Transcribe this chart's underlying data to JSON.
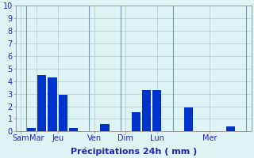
{
  "x_positions": [
    1,
    2,
    3,
    4,
    5,
    8,
    11,
    12,
    13,
    16,
    17,
    20
  ],
  "bar_values": [
    0.3,
    4.5,
    4.3,
    2.9,
    0.3,
    0.6,
    1.5,
    3.3,
    3.3,
    1.9,
    0.0,
    0.4
  ],
  "bar_color": "#0033cc",
  "tick_labels": [
    "Sam",
    "Mar",
    "Jeu",
    "Ven",
    "Dim",
    "Lun",
    "Mer"
  ],
  "tick_positions": [
    0,
    1.5,
    3.5,
    7,
    10,
    13,
    18
  ],
  "vline_positions": [
    0.5,
    6.5,
    9.5,
    14.5,
    21.5
  ],
  "xlabel": "Précipitations 24h ( mm )",
  "ylim": [
    0,
    10
  ],
  "xlim": [
    -0.5,
    22
  ],
  "yticks": [
    0,
    1,
    2,
    3,
    4,
    5,
    6,
    7,
    8,
    9,
    10
  ],
  "background_color": "#dff5f5",
  "grid_color": "#b0cccc",
  "xlabel_fontsize": 8,
  "tick_fontsize": 7,
  "tick_color": "#2222bb"
}
